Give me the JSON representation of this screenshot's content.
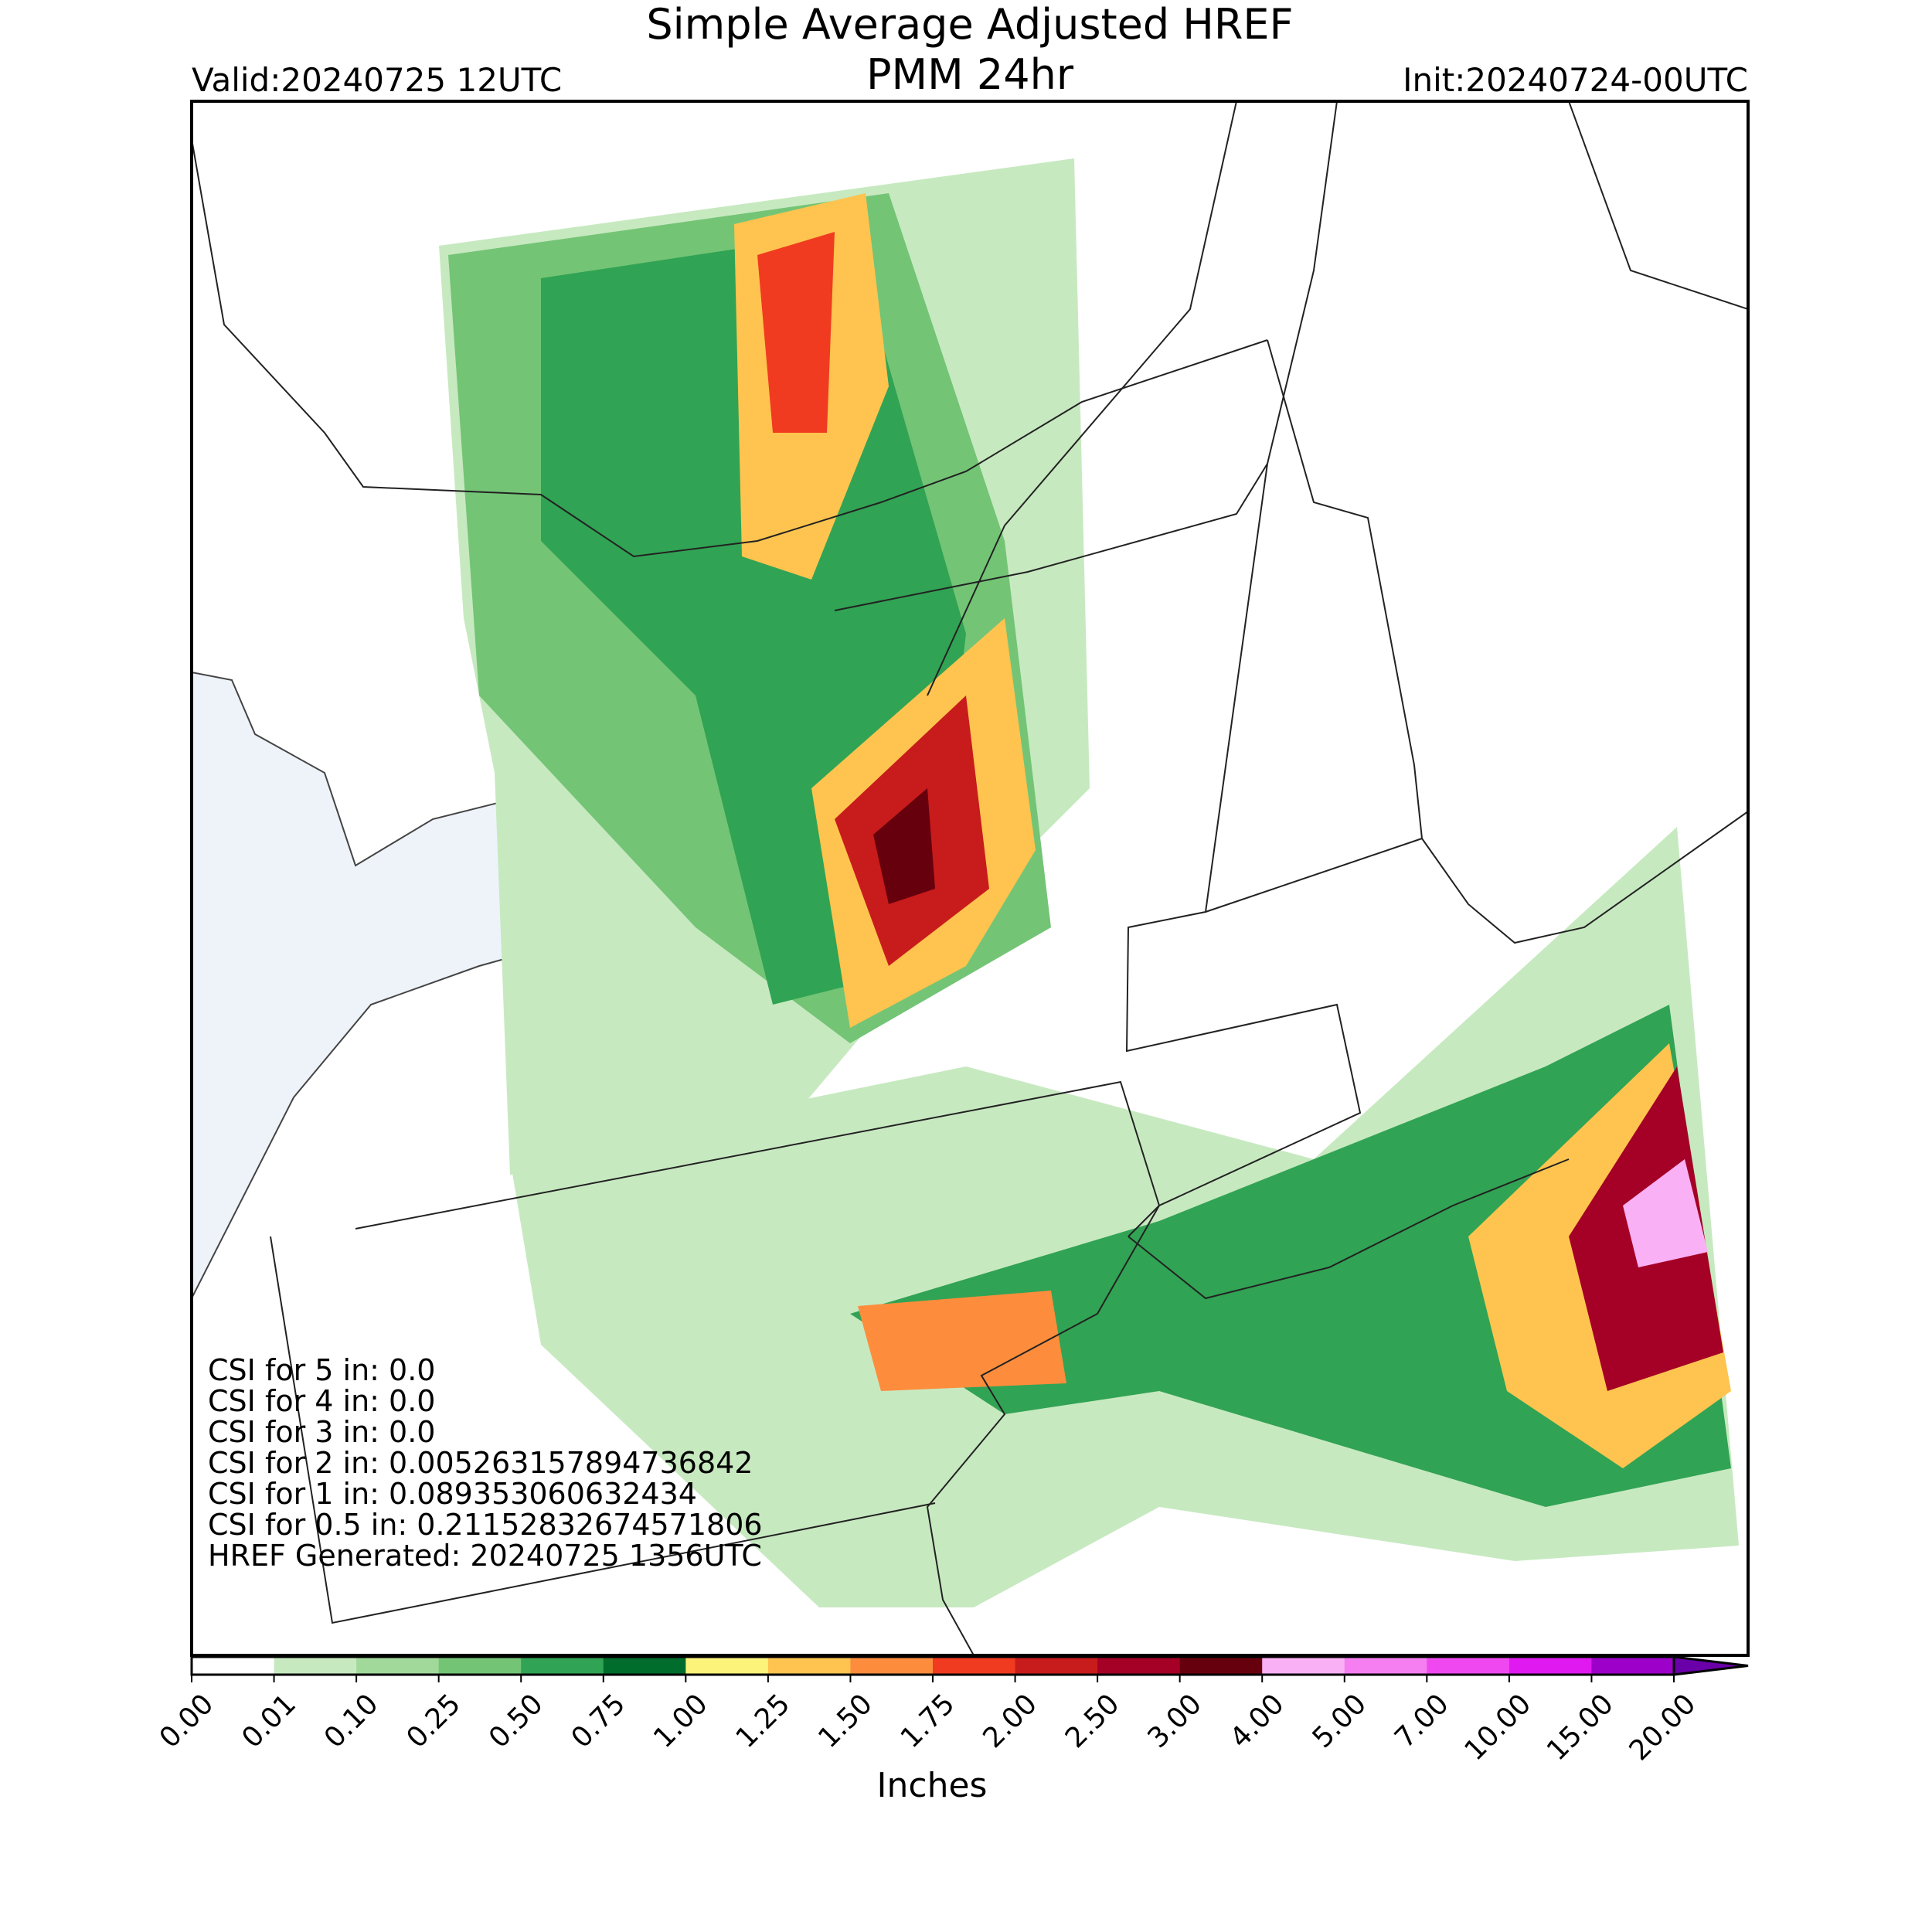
{
  "header": {
    "title": "Simple Average Adjusted HREF",
    "subtitle": "PMM 24hr",
    "valid": "Valid:20240725 12UTC",
    "init": "Init:20240724-00UTC"
  },
  "stats": [
    "CSI for 5 in: 0.0",
    "CSI for 4 in: 0.0",
    "CSI for 3 in: 0.0",
    "CSI for 2 in: 0.005263157894736842",
    "CSI for 1 in: 0.089353060632434",
    "CSI for 0.5 in: 0.21152832674571806",
    "HREF Generated: 20240725 1356UTC"
  ],
  "colorbar": {
    "label": "Inches",
    "levels": [
      "0.00",
      "0.01",
      "0.10",
      "0.25",
      "0.50",
      "0.75",
      "1.00",
      "1.25",
      "1.50",
      "1.75",
      "2.00",
      "2.50",
      "3.00",
      "4.00",
      "5.00",
      "7.00",
      "10.00",
      "15.00",
      "20.00"
    ],
    "colors": [
      "#ffffff",
      "#c7e9c0",
      "#a1d99b",
      "#74c476",
      "#31a354",
      "#006d2c",
      "#fcf47a",
      "#fec44f",
      "#fd8d3c",
      "#f03b20",
      "#c81b1b",
      "#a50026",
      "#67000d",
      "#f9b0f5",
      "#f57ef0",
      "#f048f0",
      "#e019f0",
      "#9d00c8"
    ],
    "extend_color": "#6a00a8"
  }
}
